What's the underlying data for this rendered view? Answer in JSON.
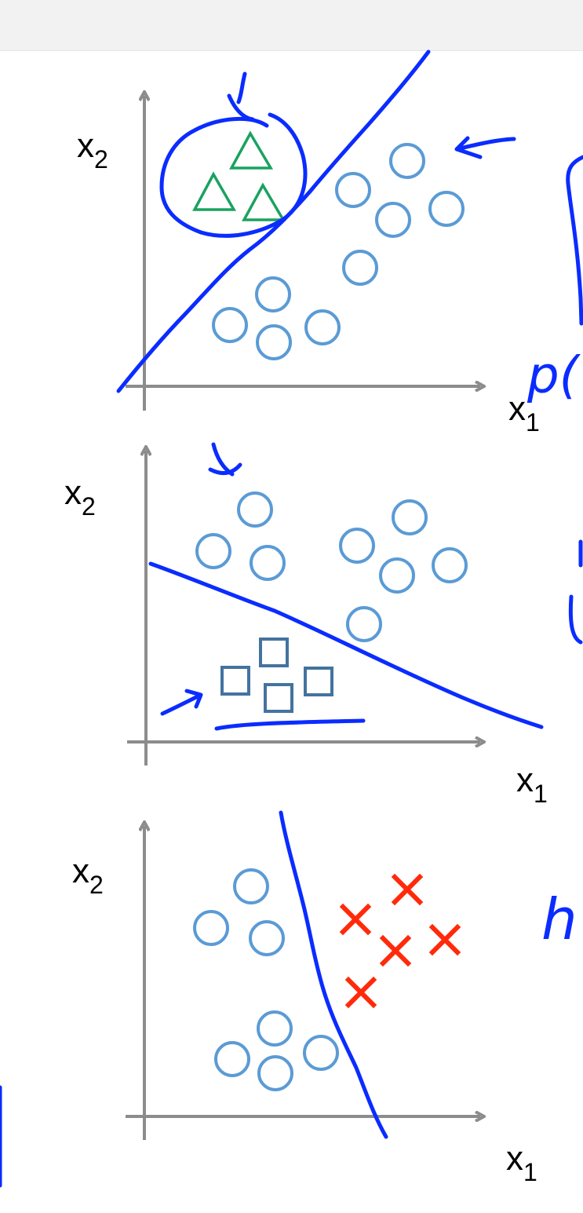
{
  "colors": {
    "axis": "#8c8c8c",
    "ink": "#0a2cff",
    "circle": "#5b9bd5",
    "triangle": "#1aa260",
    "square": "#44739f",
    "cross": "#ff2a0a",
    "toolbar": "#f2f2f2"
  },
  "icons": [
    "circle-marker",
    "triangle-marker",
    "square-marker",
    "cross-marker",
    "arrow-annotation"
  ],
  "panels": [
    {
      "x_axis": {
        "label": "x",
        "subscript": "1"
      },
      "y_axis": {
        "label": "x",
        "subscript": "2"
      },
      "classes": [
        "triangle",
        "circle"
      ],
      "handwriting": "p("
    },
    {
      "x_axis": {
        "label": "x",
        "subscript": "1"
      },
      "y_axis": {
        "label": "x",
        "subscript": "2"
      },
      "classes": [
        "square",
        "circle"
      ],
      "handwriting": ""
    },
    {
      "x_axis": {
        "label": "x",
        "subscript": "1"
      },
      "y_axis": {
        "label": "x",
        "subscript": "2"
      },
      "classes": [
        "circle",
        "cross"
      ],
      "handwriting": "h"
    }
  ]
}
